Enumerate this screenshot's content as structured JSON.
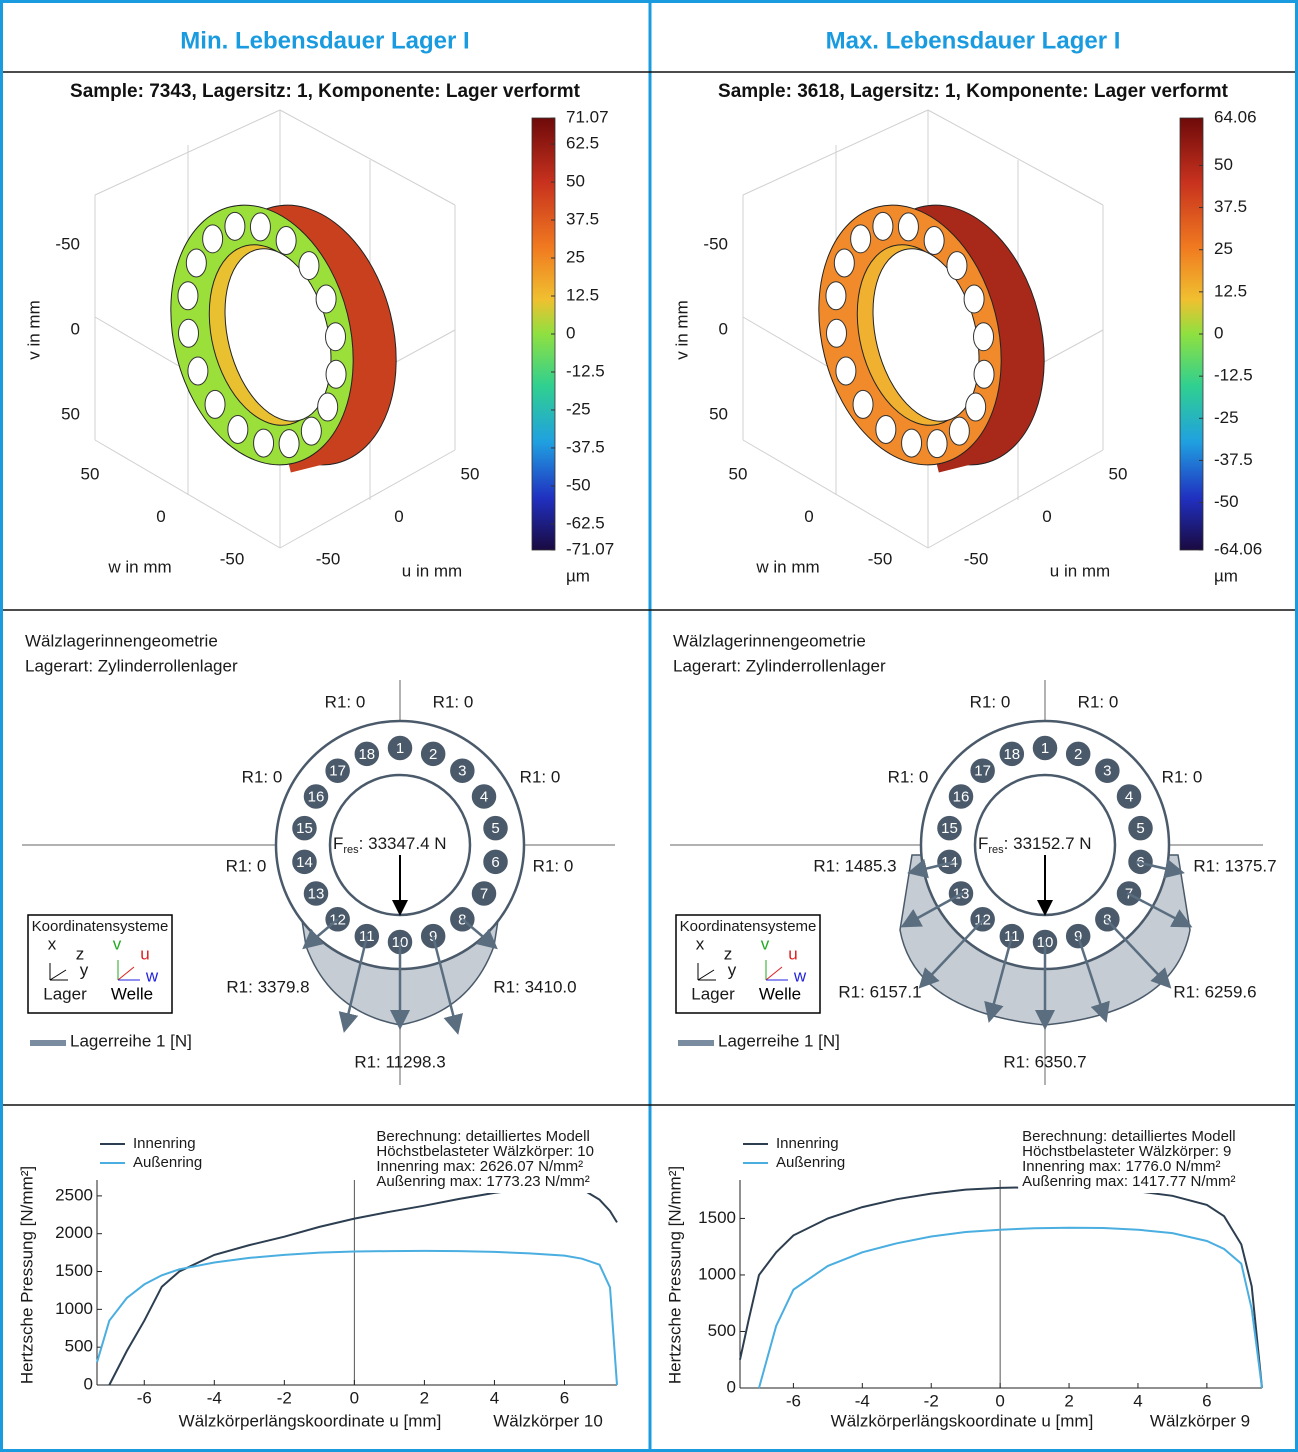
{
  "header": {
    "titles": [
      "Min. Lebensdauer Lager I",
      "Max. Lebensdauer Lager I"
    ]
  },
  "bearing_plots": [
    {
      "title": "Sample: 7343, Lagersitz: 1, Komponente: Lager verformt",
      "v_label": "v in mm",
      "w_label": "w in mm",
      "u_label": "u in mm",
      "v_ticks": [
        -50,
        0,
        50
      ],
      "w_ticks": [
        50,
        0,
        -50
      ],
      "u_ticks": [
        -50,
        0,
        50
      ],
      "clim": [
        -71.07,
        71.07
      ],
      "cticks": [
        71.07,
        62.5,
        50,
        37.5,
        25,
        12.5,
        0,
        -12.5,
        -25,
        -37.5,
        -50,
        -62.5,
        -71.07
      ],
      "cunit": "µm"
    },
    {
      "title": "Sample: 3618, Lagersitz: 1, Komponente: Lager verformt",
      "v_label": "v in mm",
      "w_label": "w in mm",
      "u_label": "u in mm",
      "v_ticks": [
        -50,
        0,
        50
      ],
      "w_ticks": [
        50,
        0,
        -50
      ],
      "u_ticks": [
        -50,
        0,
        50
      ],
      "clim": [
        -64.06,
        64.06
      ],
      "cticks": [
        64.06,
        50,
        37.5,
        25,
        12.5,
        0,
        -12.5,
        -25,
        -37.5,
        -50,
        -64.06
      ],
      "cunit": "µm"
    }
  ],
  "load_diagrams": [
    {
      "lines": [
        "Wälzlagerinnengeometrie",
        "Lagerart: Zylinderrollenlager"
      ],
      "rollers": [
        "1",
        "2",
        "3",
        "4",
        "5",
        "6",
        "7",
        "8",
        "9",
        "10",
        "11",
        "12",
        "13",
        "14",
        "15",
        "16",
        "17",
        "18"
      ],
      "f_res": [
        "F",
        "res",
        ": 33347.4 N"
      ],
      "loads": [
        "R1: 0",
        "R1: 0",
        "R1: 0",
        "R1: 0",
        "R1: 0",
        "R1: 0",
        "R1: 3379.8",
        "R1: 3410.0",
        "R1: 11298.3"
      ],
      "legend": "Lagerreihe 1 [N]",
      "coord": {
        "title": "Koordinatensysteme",
        "lager": [
          "x",
          "z",
          "y",
          "Lager"
        ],
        "welle": [
          "v",
          "u",
          "w",
          "Welle"
        ]
      }
    },
    {
      "lines": [
        "Wälzlagerinnengeometrie",
        "Lagerart: Zylinderrollenlager"
      ],
      "rollers": [
        "1",
        "2",
        "3",
        "4",
        "5",
        "6",
        "7",
        "8",
        "9",
        "10",
        "11",
        "12",
        "13",
        "14",
        "15",
        "16",
        "17",
        "18"
      ],
      "f_res": [
        "F",
        "res",
        ": 33152.7 N"
      ],
      "loads": [
        "R1: 0",
        "R1: 0",
        "R1: 0",
        "R1: 0",
        "R1: 1485.3",
        "R1: 1375.7",
        "R1: 6157.1",
        "R1: 6259.6",
        "R1: 6350.7"
      ],
      "legend": "Lagerreihe 1 [N]",
      "coord": {
        "title": "Koordinatensysteme",
        "lager": [
          "x",
          "z",
          "y",
          "Lager"
        ],
        "welle": [
          "v",
          "u",
          "w",
          "Welle"
        ]
      }
    }
  ],
  "chart_data": [
    {
      "type": "line",
      "annotations": [
        "Berechnung: detailliertes Modell",
        "Höchstbelasteter Wälzkörper: 10",
        "Innenring max: 2626.07 N/mm²",
        "Außenring max: 1773.23 N/mm²"
      ],
      "xlabel": "Wälzkörperlängskoordinate u [mm]",
      "xnote": "Wälzkörper 10",
      "ylabel": "Hertzsche Pressung [N/mm²]",
      "x": [
        -7.35,
        -7,
        -6.5,
        -6,
        -5.5,
        -5,
        -4,
        -3,
        -2,
        -1,
        0,
        1,
        2,
        3,
        4,
        5,
        6,
        6.5,
        7,
        7.3,
        7.5
      ],
      "series": [
        {
          "name": "Innenring",
          "color": "#2c3e50",
          "values": [
            null,
            0,
            450,
            850,
            1300,
            1500,
            1720,
            1850,
            1960,
            2090,
            2200,
            2290,
            2370,
            2460,
            2540,
            2600,
            2620,
            2590,
            2450,
            2300,
            2150
          ]
        },
        {
          "name": "Außenring",
          "color": "#4aaee0",
          "values": [
            300,
            850,
            1150,
            1330,
            1450,
            1530,
            1620,
            1680,
            1720,
            1750,
            1765,
            1770,
            1773,
            1770,
            1760,
            1740,
            1710,
            1670,
            1590,
            1290,
            0
          ]
        }
      ],
      "xlim": [
        -7.35,
        7.5
      ],
      "ylim": [
        0,
        2710
      ],
      "xticks": [
        -6,
        -4,
        -2,
        0,
        2,
        4,
        6
      ],
      "yticks": [
        0,
        500,
        1000,
        1500,
        2000,
        2500
      ]
    },
    {
      "type": "line",
      "annotations": [
        "Berechnung: detailliertes Modell",
        "Höchstbelasteter Wälzkörper: 9",
        "Innenring max: 1776.0 N/mm²",
        "Außenring max: 1417.77 N/mm²"
      ],
      "xlabel": "Wälzkörperlängskoordinate u [mm]",
      "xnote": "Wälzkörper 9",
      "ylabel": "Hertzsche Pressung [N/mm²]",
      "x": [
        -7.55,
        -7.3,
        -7,
        -6.5,
        -6,
        -5,
        -4,
        -3,
        -2,
        -1,
        0,
        1,
        2,
        3,
        4,
        5,
        6,
        6.5,
        7,
        7.3,
        7.6
      ],
      "series": [
        {
          "name": "Innenring",
          "color": "#2c3e50",
          "values": [
            250,
            600,
            1000,
            1200,
            1350,
            1500,
            1600,
            1670,
            1720,
            1755,
            1770,
            1776,
            1775,
            1760,
            1740,
            1700,
            1620,
            1520,
            1270,
            900,
            0
          ]
        },
        {
          "name": "Außenring",
          "color": "#4aaee0",
          "values": [
            null,
            null,
            0,
            550,
            870,
            1080,
            1200,
            1280,
            1340,
            1380,
            1400,
            1413,
            1418,
            1415,
            1400,
            1370,
            1300,
            1230,
            1100,
            700,
            0
          ]
        }
      ],
      "xlim": [
        -7.55,
        7.6
      ],
      "ylim": [
        0,
        1840
      ],
      "xticks": [
        -6,
        -4,
        -2,
        0,
        2,
        4,
        6
      ],
      "yticks": [
        0,
        500,
        1000,
        1500
      ]
    }
  ]
}
